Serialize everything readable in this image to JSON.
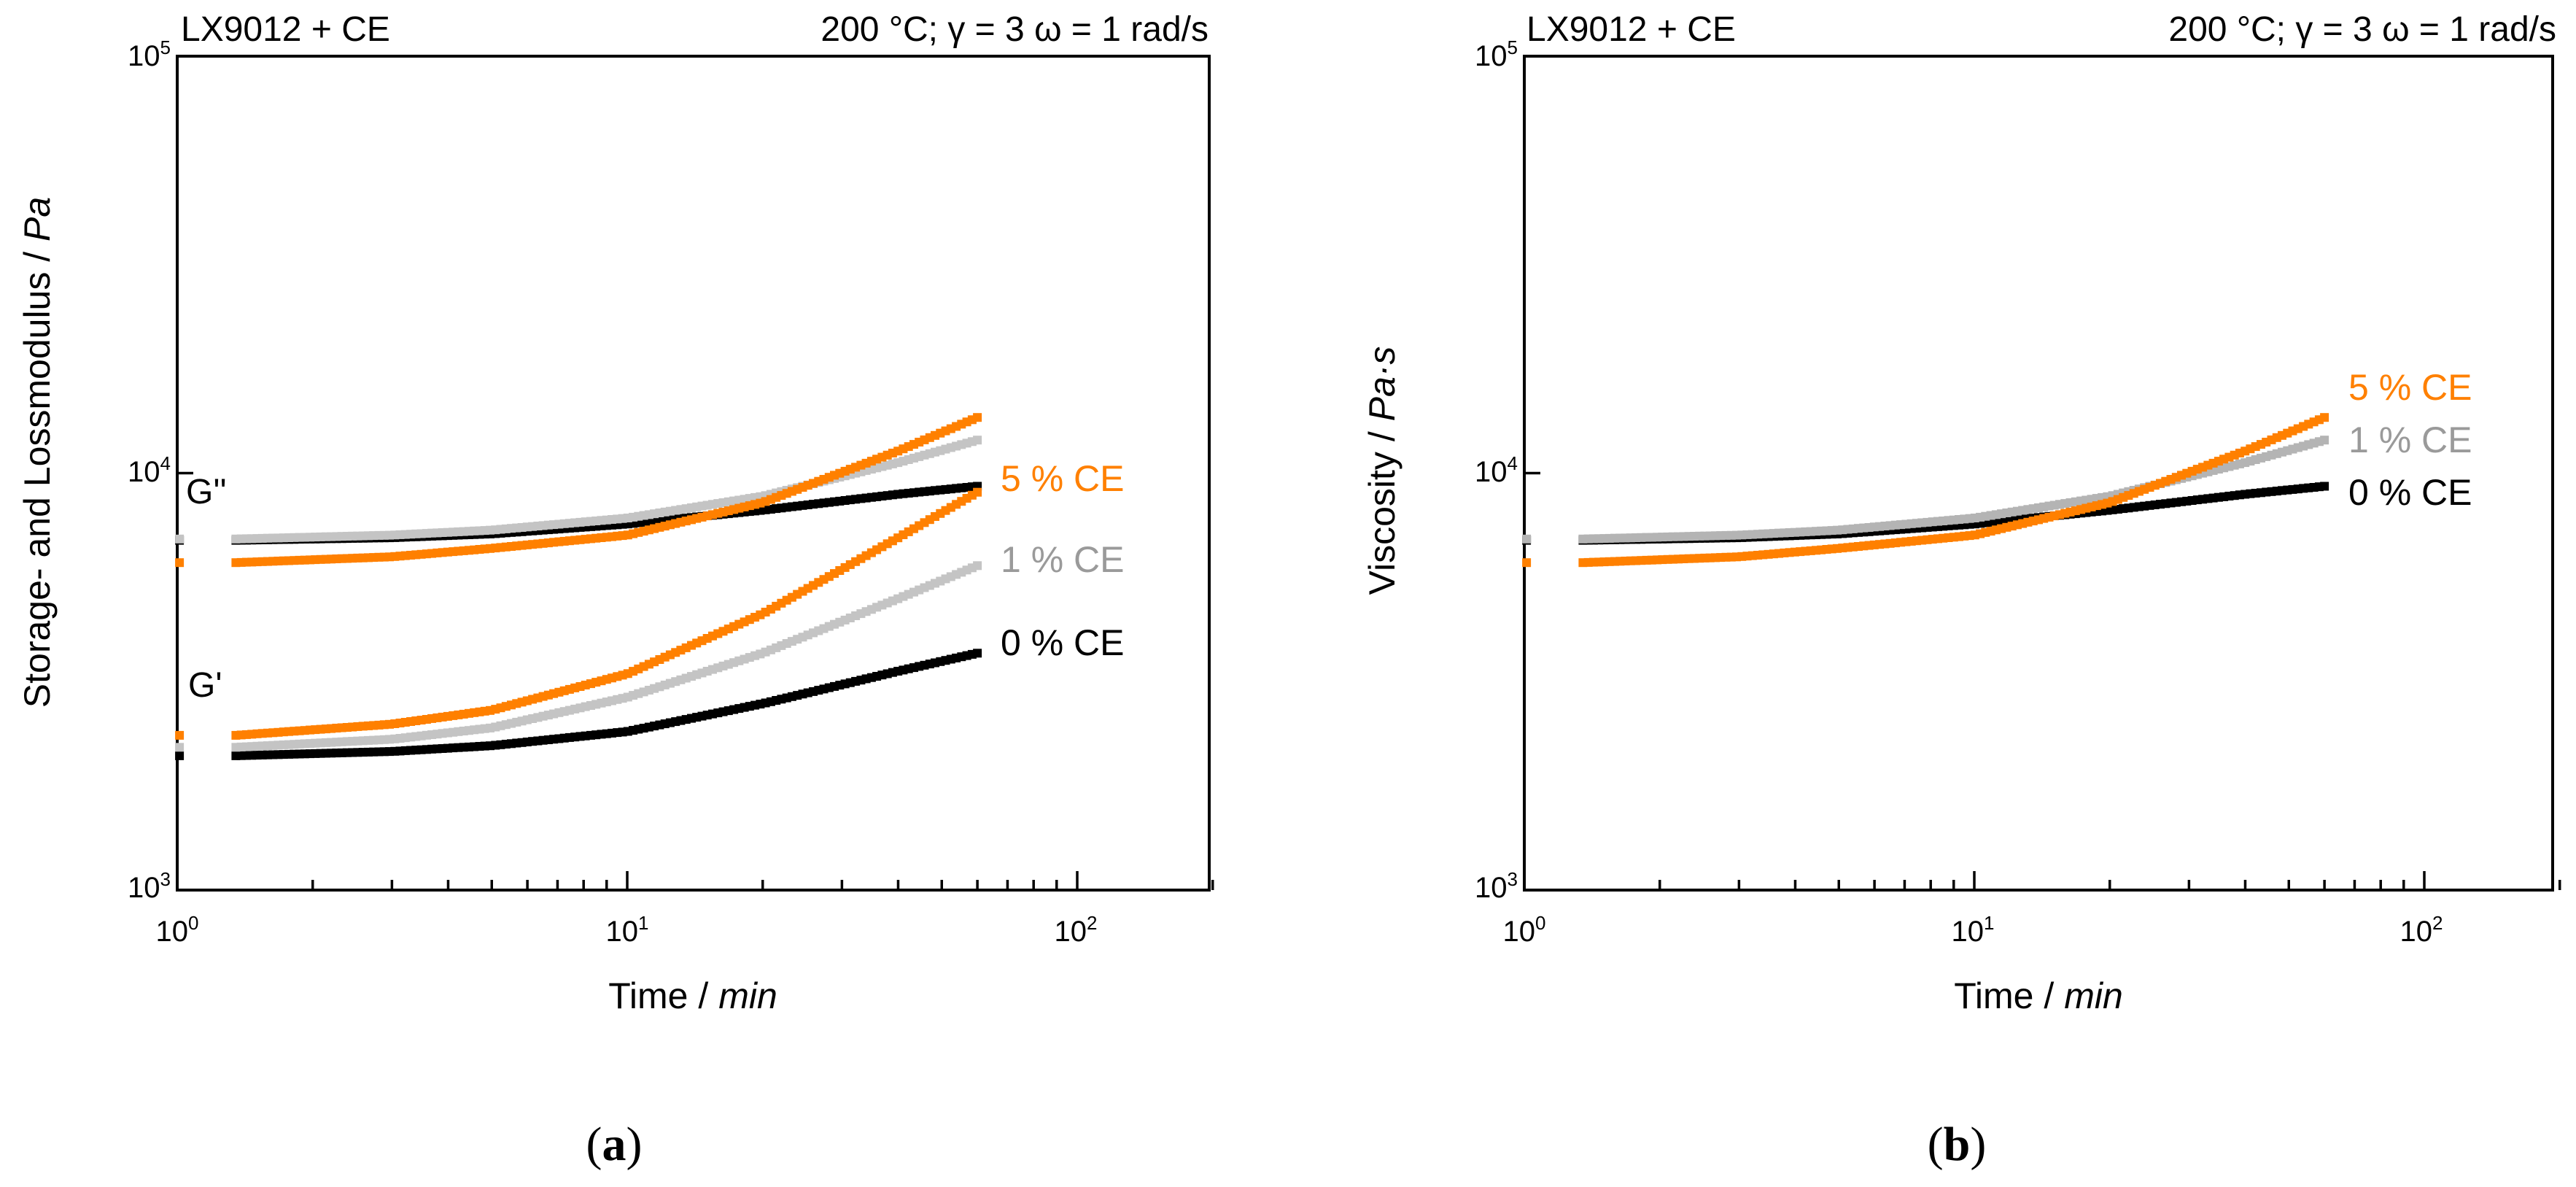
{
  "chart_data": [
    {
      "type": "line",
      "panel_label": "(a)",
      "title_left": "LX9012 + CE",
      "title_right": "200 °C; γ = 3 ω = 1 rad/s",
      "xlabel": "Time",
      "xunit": "min",
      "ylabel": "Storage- and Lossmodulus",
      "yunit": "Pa",
      "xscale": "log",
      "yscale": "log",
      "xlim": [
        1,
        200
      ],
      "ylim": [
        1000,
        100000
      ],
      "x_ticks": [
        {
          "base": "10",
          "exp": "0"
        },
        {
          "base": "10",
          "exp": "1"
        },
        {
          "base": "10",
          "exp": "2"
        }
      ],
      "y_ticks": [
        {
          "base": "10",
          "exp": "3"
        },
        {
          "base": "10",
          "exp": "4"
        },
        {
          "base": "10",
          "exp": "5"
        }
      ],
      "annotations": [
        {
          "text": "G''"
        },
        {
          "text": "G'"
        }
      ],
      "legend": [
        {
          "text": "5 % CE",
          "color": "#ff8000"
        },
        {
          "text": "1 % CE",
          "color": "#9a9a9a"
        },
        {
          "text": "0 % CE",
          "color": "#000000"
        }
      ],
      "series": [
        {
          "name": "G'' 0 % CE",
          "color": "#000000",
          "x": [
            1.35,
            3,
            5,
            10,
            20,
            40,
            60
          ],
          "values": [
            6900,
            7000,
            7150,
            7550,
            8150,
            8900,
            9300
          ]
        },
        {
          "name": "G'' 1 % CE",
          "color": "#c4c4c4",
          "x": [
            1.35,
            3,
            5,
            10,
            20,
            40,
            60
          ],
          "values": [
            6950,
            7100,
            7300,
            7800,
            8800,
            10600,
            12000
          ]
        },
        {
          "name": "G'' 5 % CE",
          "color": "#ff8000",
          "x": [
            1.35,
            3,
            5,
            10,
            20,
            40,
            60
          ],
          "values": [
            6100,
            6300,
            6600,
            7100,
            8500,
            11300,
            13600
          ]
        },
        {
          "name": "G' 0 % CE",
          "color": "#000000",
          "x": [
            1.35,
            3,
            5,
            10,
            20,
            40,
            60
          ],
          "values": [
            2100,
            2150,
            2220,
            2400,
            2800,
            3350,
            3700
          ]
        },
        {
          "name": "G' 1 % CE",
          "color": "#c4c4c4",
          "x": [
            1.35,
            3,
            5,
            10,
            20,
            40,
            60
          ],
          "values": [
            2200,
            2300,
            2450,
            2900,
            3700,
            5000,
            6000
          ]
        },
        {
          "name": "G' 5 % CE",
          "color": "#ff8000",
          "x": [
            1.35,
            3,
            5,
            10,
            20,
            40,
            60
          ],
          "values": [
            2350,
            2500,
            2700,
            3300,
            4600,
            7000,
            9000
          ]
        }
      ]
    },
    {
      "type": "line",
      "panel_label": "(b)",
      "title_left": "LX9012 + CE",
      "title_right": "200 °C; γ = 3 ω = 1 rad/s",
      "xlabel": "Time",
      "xunit": "min",
      "ylabel": "Viscosity",
      "yunit": "Pa·s",
      "xscale": "log",
      "yscale": "log",
      "xlim": [
        1,
        200
      ],
      "ylim": [
        1000,
        100000
      ],
      "x_ticks": [
        {
          "base": "10",
          "exp": "0"
        },
        {
          "base": "10",
          "exp": "1"
        },
        {
          "base": "10",
          "exp": "2"
        }
      ],
      "y_ticks": [
        {
          "base": "10",
          "exp": "3"
        },
        {
          "base": "10",
          "exp": "4"
        },
        {
          "base": "10",
          "exp": "5"
        }
      ],
      "annotations": [],
      "legend": [
        {
          "text": "5 % CE",
          "color": "#ff8000"
        },
        {
          "text": "1 % CE",
          "color": "#9a9a9a"
        },
        {
          "text": "0 % CE",
          "color": "#000000"
        }
      ],
      "series": [
        {
          "name": "η 0 % CE",
          "color": "#000000",
          "x": [
            1.35,
            3,
            5,
            10,
            20,
            40,
            60
          ],
          "values": [
            6900,
            7000,
            7150,
            7550,
            8150,
            8900,
            9300
          ]
        },
        {
          "name": "η 1 % CE",
          "color": "#b4b4b4",
          "x": [
            1.35,
            3,
            5,
            10,
            20,
            40,
            60
          ],
          "values": [
            6950,
            7100,
            7300,
            7800,
            8800,
            10600,
            12000
          ]
        },
        {
          "name": "η 5 % CE",
          "color": "#ff8000",
          "x": [
            1.35,
            3,
            5,
            10,
            20,
            40,
            60
          ],
          "values": [
            6100,
            6300,
            6600,
            7100,
            8500,
            11300,
            13600
          ]
        }
      ]
    }
  ]
}
